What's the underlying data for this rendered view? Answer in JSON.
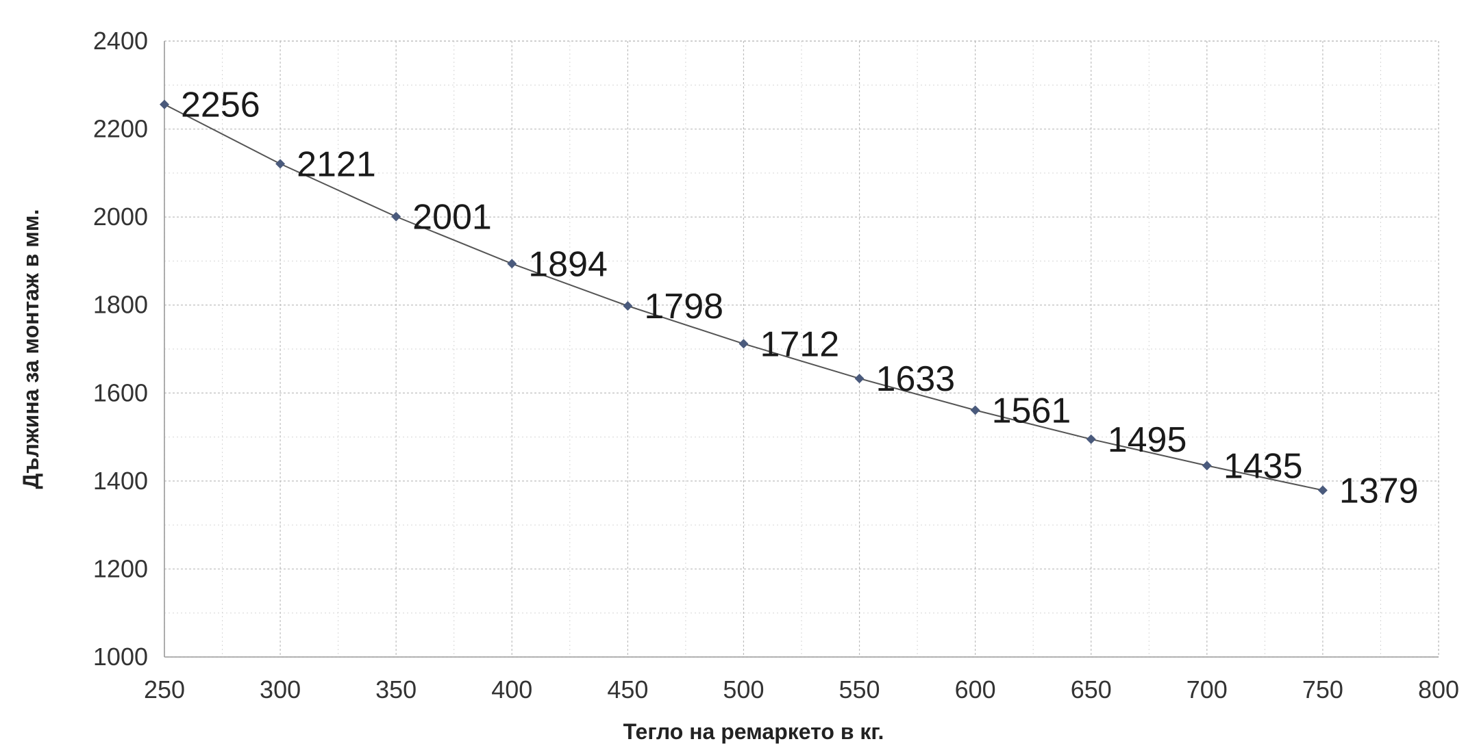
{
  "chart_data": {
    "type": "line",
    "title": "",
    "xlabel": "Тегло на ремаркето в кг.",
    "ylabel": "Дължина за монтаж в мм.",
    "xlim": [
      250,
      800
    ],
    "ylim": [
      1000,
      2400
    ],
    "x_ticks": [
      250,
      300,
      350,
      400,
      450,
      500,
      550,
      600,
      650,
      700,
      750,
      800
    ],
    "y_ticks": [
      1000,
      1200,
      1400,
      1600,
      1800,
      2000,
      2200,
      2400
    ],
    "grid": true,
    "legend": "none",
    "series": [
      {
        "x": [
          250,
          300,
          350,
          400,
          450,
          500,
          550,
          600,
          650,
          700,
          750
        ],
        "values": [
          2256,
          2121,
          2001,
          1894,
          1798,
          1712,
          1633,
          1561,
          1495,
          1435,
          1379
        ],
        "labels": [
          "2256",
          "2121",
          "2001",
          "1894",
          "1798",
          "1712",
          "1633",
          "1561",
          "1495",
          "1435",
          "1379"
        ],
        "color": "#4a5a7c",
        "line_color": "#555555",
        "marker": "diamond"
      }
    ]
  }
}
